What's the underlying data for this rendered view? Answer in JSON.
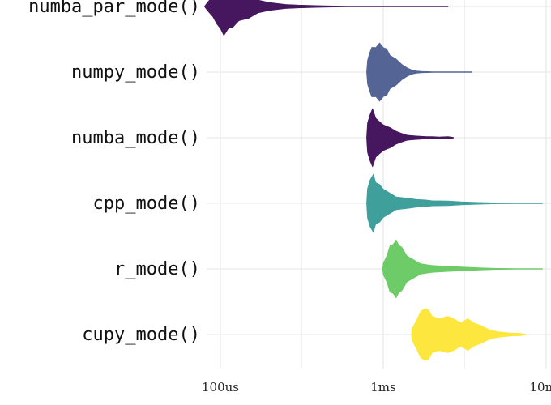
{
  "chart_data": {
    "type": "violin",
    "x_scale": "log10",
    "x_ticks": [
      {
        "value": 0.0001,
        "label": "100us"
      },
      {
        "value": 0.001,
        "label": "1ms"
      },
      {
        "value": 0.01,
        "label": "10ms"
      }
    ],
    "grid": true,
    "series": [
      {
        "name": "numba_par_mode()",
        "color": "#46175f",
        "x_range": [
          8e-05,
          0.0025
        ],
        "profile": [
          [
            8e-05,
            0.01
          ],
          [
            8.5e-05,
            0.2
          ],
          [
            9e-05,
            0.4
          ],
          [
            9.5e-05,
            0.6
          ],
          [
            0.0001,
            0.85
          ],
          [
            0.000105,
            1.0
          ],
          [
            0.000112,
            0.85
          ],
          [
            0.00012,
            0.7
          ],
          [
            0.00013,
            0.55
          ],
          [
            0.00015,
            0.4
          ],
          [
            0.00017,
            0.25
          ],
          [
            0.0002,
            0.14
          ],
          [
            0.00025,
            0.08
          ],
          [
            0.0003,
            0.05
          ],
          [
            0.0004,
            0.035
          ],
          [
            0.0005,
            0.02
          ],
          [
            0.0006,
            0.01
          ],
          [
            0.001,
            0.005
          ],
          [
            0.0025,
            0.003
          ]
        ]
      },
      {
        "name": "numpy_mode()",
        "color": "#546595",
        "x_range": [
          0.00079,
          0.0035
        ],
        "profile": [
          [
            0.00079,
            0.01
          ],
          [
            0.0008,
            0.4
          ],
          [
            0.00082,
            0.7
          ],
          [
            0.00085,
            0.85
          ],
          [
            0.0009,
            0.95
          ],
          [
            0.00095,
            1.0
          ],
          [
            0.001,
            0.95
          ],
          [
            0.00105,
            0.8
          ],
          [
            0.0011,
            0.65
          ],
          [
            0.0012,
            0.45
          ],
          [
            0.0013,
            0.3
          ],
          [
            0.0014,
            0.15
          ],
          [
            0.0015,
            0.08
          ],
          [
            0.0016,
            0.04
          ],
          [
            0.0017,
            0.03
          ],
          [
            0.002,
            0.015
          ],
          [
            0.003,
            0.01
          ],
          [
            0.0035,
            0.005
          ]
        ]
      },
      {
        "name": "numba_mode()",
        "color": "#46175f",
        "x_range": [
          0.00079,
          0.0027
        ],
        "profile": [
          [
            0.00079,
            0.01
          ],
          [
            0.0008,
            0.5
          ],
          [
            0.00083,
            0.9
          ],
          [
            0.00086,
            1.0
          ],
          [
            0.0009,
            0.75
          ],
          [
            0.00095,
            0.55
          ],
          [
            0.001,
            0.5
          ],
          [
            0.0011,
            0.35
          ],
          [
            0.0012,
            0.25
          ],
          [
            0.0013,
            0.15
          ],
          [
            0.0014,
            0.1
          ],
          [
            0.0016,
            0.06
          ],
          [
            0.0018,
            0.05
          ],
          [
            0.002,
            0.04
          ],
          [
            0.0022,
            0.03
          ],
          [
            0.0025,
            0.04
          ],
          [
            0.0027,
            0.01
          ]
        ]
      },
      {
        "name": "cpp_mode()",
        "color": "#3f9f9b",
        "x_range": [
          0.00079,
          0.0095
        ],
        "profile": [
          [
            0.00079,
            0.01
          ],
          [
            0.0008,
            0.5
          ],
          [
            0.00083,
            0.9
          ],
          [
            0.00087,
            1.0
          ],
          [
            0.0009,
            0.8
          ],
          [
            0.00095,
            0.65
          ],
          [
            0.001,
            0.55
          ],
          [
            0.0011,
            0.35
          ],
          [
            0.0012,
            0.25
          ],
          [
            0.0014,
            0.18
          ],
          [
            0.0016,
            0.15
          ],
          [
            0.0018,
            0.12
          ],
          [
            0.002,
            0.1
          ],
          [
            0.0025,
            0.08
          ],
          [
            0.003,
            0.06
          ],
          [
            0.004,
            0.03
          ],
          [
            0.005,
            0.02
          ],
          [
            0.007,
            0.01
          ],
          [
            0.0095,
            0.005
          ]
        ]
      },
      {
        "name": "r_mode()",
        "color": "#6dcb68",
        "x_range": [
          0.00099,
          0.0095
        ],
        "profile": [
          [
            0.00099,
            0.01
          ],
          [
            0.001,
            0.2
          ],
          [
            0.00105,
            0.5
          ],
          [
            0.0011,
            0.8
          ],
          [
            0.00115,
            0.95
          ],
          [
            0.0012,
            1.0
          ],
          [
            0.00125,
            0.9
          ],
          [
            0.0013,
            0.75
          ],
          [
            0.0014,
            0.5
          ],
          [
            0.0015,
            0.35
          ],
          [
            0.0017,
            0.2
          ],
          [
            0.002,
            0.12
          ],
          [
            0.0025,
            0.1
          ],
          [
            0.003,
            0.07
          ],
          [
            0.004,
            0.04
          ],
          [
            0.005,
            0.02
          ],
          [
            0.007,
            0.01
          ],
          [
            0.0095,
            0.005
          ]
        ]
      },
      {
        "name": "cupy_mode()",
        "color": "#fde63d",
        "x_range": [
          0.00149,
          0.0075
        ],
        "profile": [
          [
            0.00149,
            0.01
          ],
          [
            0.0015,
            0.2
          ],
          [
            0.0016,
            0.55
          ],
          [
            0.0017,
            0.8
          ],
          [
            0.0018,
            1.0
          ],
          [
            0.0019,
            0.85
          ],
          [
            0.002,
            0.7
          ],
          [
            0.0022,
            0.55
          ],
          [
            0.0025,
            0.7
          ],
          [
            0.0027,
            0.55
          ],
          [
            0.003,
            0.45
          ],
          [
            0.0033,
            0.55
          ],
          [
            0.0036,
            0.45
          ],
          [
            0.004,
            0.3
          ],
          [
            0.0045,
            0.18
          ],
          [
            0.005,
            0.1
          ],
          [
            0.006,
            0.06
          ],
          [
            0.007,
            0.04
          ],
          [
            0.0075,
            0.01
          ]
        ]
      }
    ]
  }
}
